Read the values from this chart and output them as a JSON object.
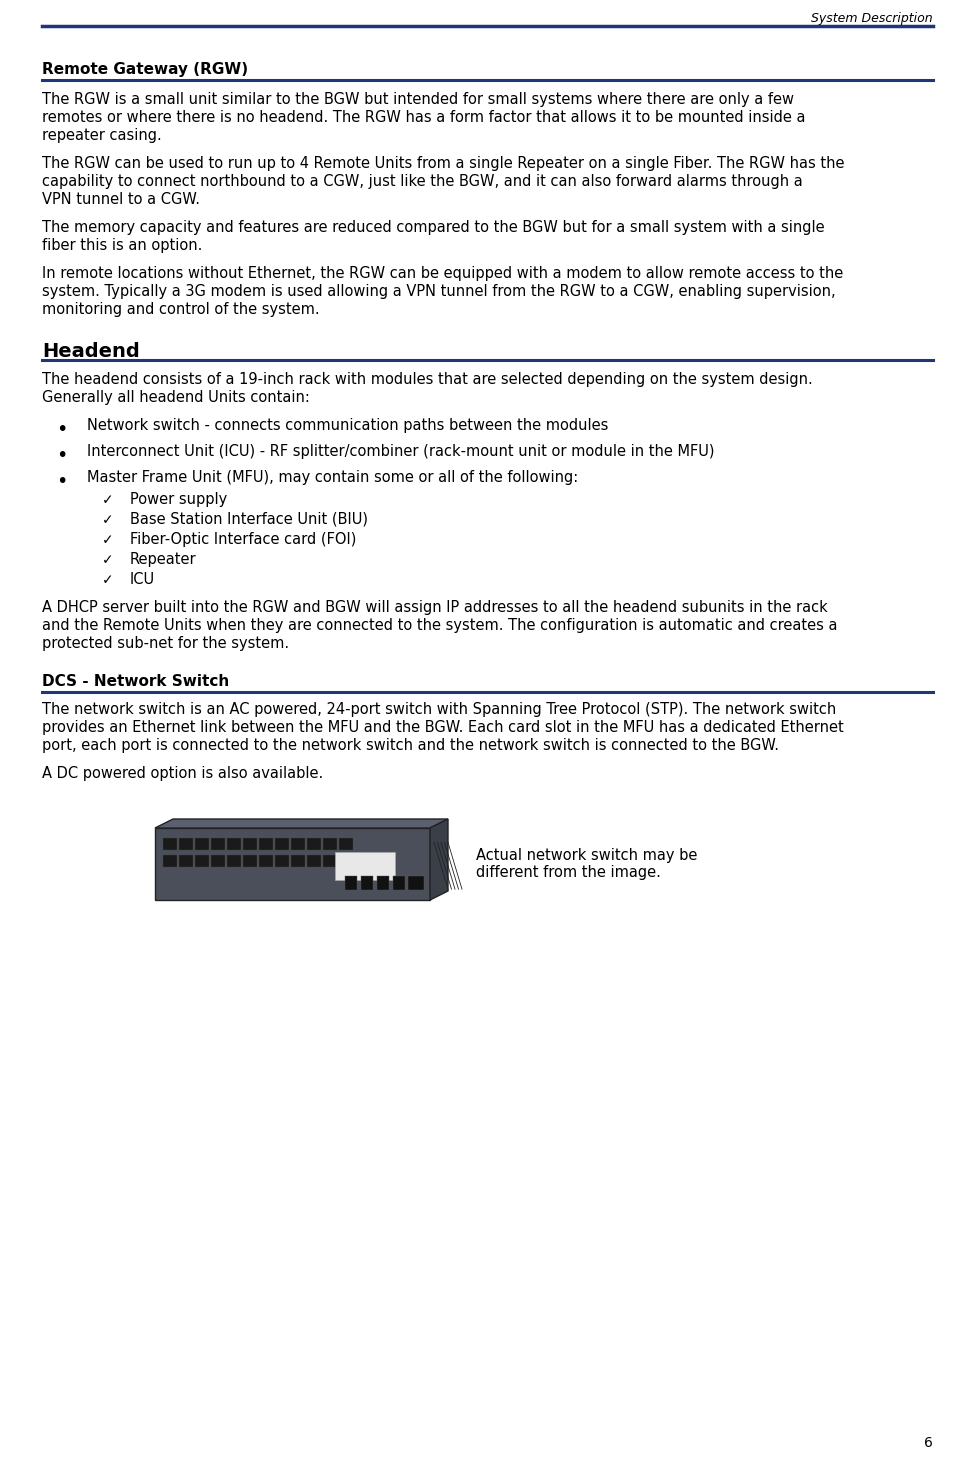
{
  "header_text": "System Description",
  "page_number": "6",
  "bg_color": "#ffffff",
  "text_color": "#000000",
  "line_color": "#1f3678",
  "section1_title": "Remote Gateway (RGW)",
  "section1_para1": "The RGW is a small unit similar to the BGW but intended for small systems where there are only a few remotes or where there is no headend. The RGW has a form factor that allows it to be mounted inside a repeater casing.",
  "section1_para2": "The RGW can be used to run up to 4 Remote Units from a single Repeater on a single Fiber. The RGW has the capability to connect northbound to a CGW, just like the BGW, and it can also forward alarms through a VPN tunnel to a CGW.",
  "section1_para3": "The memory capacity and features are reduced compared to the BGW but for a small system with a single fiber this is an option.",
  "section1_para4": "In remote locations without Ethernet, the RGW can be equipped with a modem to allow remote access to the system. Typically a 3G modem is used allowing a VPN tunnel from the RGW to a CGW, enabling supervision, monitoring and control of the system.",
  "section2_title": "Headend",
  "section2_intro": "The headend consists of a 19-inch rack with modules that are selected depending on the system design. Generally all headend Units contain:",
  "bullet1": "Network switch - connects communication paths between the modules",
  "bullet2": "Interconnect Unit (ICU) - RF splitter/combiner (rack-mount unit or module in the MFU)",
  "bullet3": "Master Frame Unit (MFU), may contain some or all of the following:",
  "subbullet1": "Power supply",
  "subbullet2": "Base Station Interface Unit (BIU)",
  "subbullet3": "Fiber-Optic Interface card (FOI)",
  "subbullet4": "Repeater",
  "subbullet5": "ICU",
  "section2_dhcp": "A DHCP server built into the RGW and BGW will assign IP addresses to all the headend subunits in the rack and the Remote Units when they are connected to the system. The configuration is automatic and creates a protected sub-net for the system.",
  "section3_title": "DCS - Network Switch",
  "section3_para1": "The network switch is an AC powered, 24-port switch with Spanning Tree Protocol (STP). The network switch provides an Ethernet link between the MFU and the BGW. Each card slot in the MFU has a dedicated Ethernet port, each port is connected to the network switch and the network switch is connected to the BGW.",
  "section3_para2": "A DC powered option is also available.",
  "image_note": "Actual network switch may be\ndifferent from the image.",
  "body_font_size": 10.5,
  "header_font_size": 9
}
